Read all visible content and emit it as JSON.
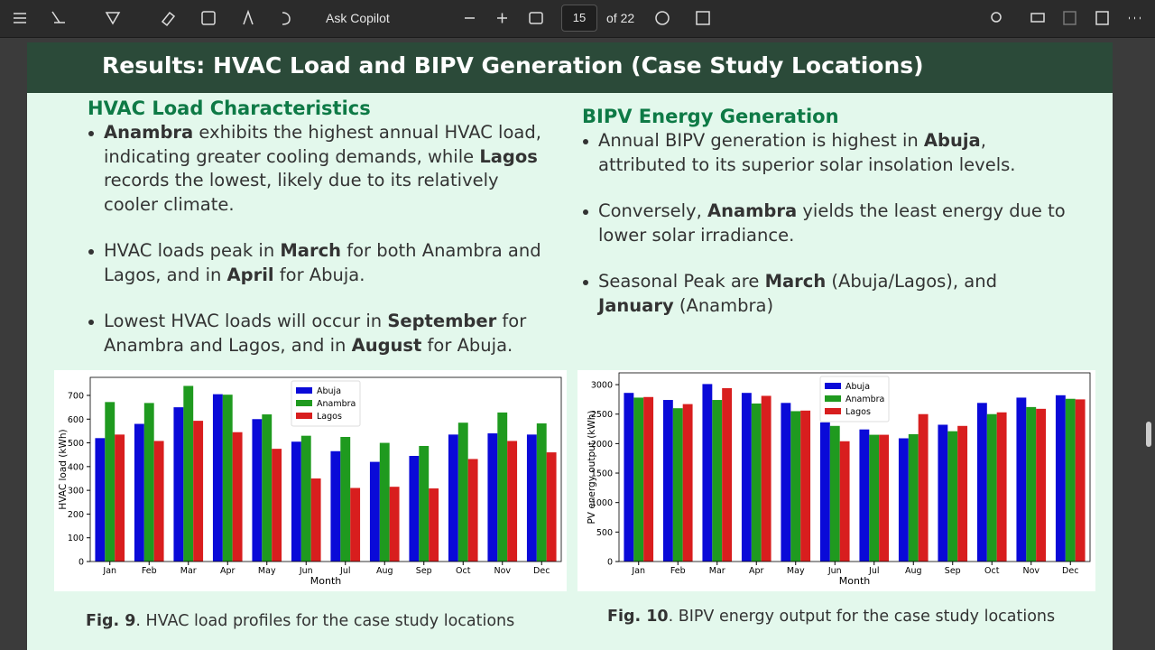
{
  "toolbar": {
    "ask_copilot": "Ask Copilot",
    "page": "15",
    "of_pages": "of 22"
  },
  "slide": {
    "title": "Results: HVAC Load and BIPV Generation (Case Study Locations)",
    "left": {
      "heading": "HVAC Load Characteristics",
      "bullets": [
        [
          {
            "text": "Anambra",
            "bold": true
          },
          " exhibits the highest annual HVAC load, indicating greater cooling demands, while ",
          {
            "text": "Lagos",
            "bold": true
          },
          " records the lowest, likely due to its relatively cooler climate."
        ],
        [
          "HVAC loads  peak in ",
          {
            "text": "March",
            "bold": true
          },
          " for both Anambra and Lagos, and in ",
          {
            "text": "April",
            "bold": true
          },
          " for Abuja."
        ],
        [
          "Lowest HVAC loads will occur in ",
          {
            "text": "September",
            "bold": true
          },
          " for Anambra and Lagos, and in ",
          {
            "text": "August",
            "bold": true
          },
          " for Abuja."
        ]
      ],
      "caption": {
        "label": "Fig. 9",
        "text": ". HVAC load profiles for the case study locations"
      }
    },
    "right": {
      "heading": "BIPV Energy Generation",
      "bullets": [
        [
          "Annual BIPV generation is highest in ",
          {
            "text": "Abuja",
            "bold": true
          },
          ", attributed to its superior solar insolation levels."
        ],
        [
          "Conversely, ",
          {
            "text": "Anambra",
            "bold": true
          },
          " yields the least energy due to lower solar irradiance."
        ],
        [
          "Seasonal Peak are ",
          {
            "text": "March",
            "bold": true
          },
          " (Abuja/Lagos), and ",
          {
            "text": "January",
            "bold": true
          },
          " (Anambra)"
        ]
      ],
      "caption": {
        "label": "Fig. 10",
        "text": ". BIPV energy output for the case study locations"
      }
    }
  },
  "chart_data": [
    {
      "type": "bar",
      "x_label": "Month",
      "y_label": "HVAC load (kWh)",
      "categories": [
        "Jan",
        "Feb",
        "Mar",
        "Apr",
        "May",
        "Jun",
        "Jul",
        "Aug",
        "Sep",
        "Oct",
        "Nov",
        "Dec"
      ],
      "series": [
        {
          "name": "Abuja",
          "color": "#0a0ad8",
          "values": [
            520,
            580,
            650,
            705,
            600,
            505,
            465,
            420,
            445,
            535,
            540,
            535
          ]
        },
        {
          "name": "Anambra",
          "color": "#1f9a1f",
          "values": [
            672,
            668,
            740,
            703,
            620,
            530,
            525,
            500,
            487,
            585,
            628,
            582
          ]
        },
        {
          "name": "Lagos",
          "color": "#d81e1e",
          "values": [
            535,
            508,
            593,
            545,
            475,
            350,
            310,
            315,
            308,
            432,
            508,
            460
          ]
        }
      ],
      "ylim": [
        0,
        776
      ],
      "yticks": [
        0,
        100,
        200,
        300,
        400,
        500,
        600,
        700
      ],
      "legend": "upper center"
    },
    {
      "type": "bar",
      "x_label": "Month",
      "y_label": "PV energy output (kWh)",
      "categories": [
        "Jan",
        "Feb",
        "Mar",
        "Apr",
        "May",
        "Jun",
        "Jul",
        "Aug",
        "Sep",
        "Oct",
        "Nov",
        "Dec"
      ],
      "series": [
        {
          "name": "Abuja",
          "color": "#0a0ad8",
          "values": [
            2860,
            2740,
            3010,
            2860,
            2690,
            2360,
            2240,
            2090,
            2320,
            2690,
            2780,
            2820
          ]
        },
        {
          "name": "Anambra",
          "color": "#1f9a1f",
          "values": [
            2780,
            2600,
            2740,
            2680,
            2550,
            2300,
            2150,
            2160,
            2210,
            2500,
            2620,
            2760
          ]
        },
        {
          "name": "Lagos",
          "color": "#d81e1e",
          "values": [
            2790,
            2670,
            2940,
            2810,
            2560,
            2040,
            2150,
            2500,
            2300,
            2530,
            2590,
            2750
          ]
        }
      ],
      "ylim": [
        0,
        3200
      ],
      "yticks": [
        0,
        500,
        1000,
        1500,
        2000,
        2500,
        3000
      ],
      "legend": "upper center"
    }
  ]
}
